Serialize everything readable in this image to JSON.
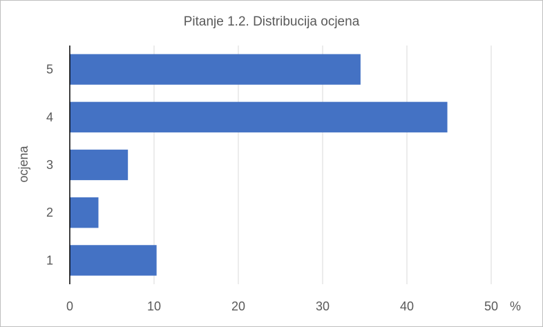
{
  "chart_data": {
    "type": "bar",
    "orientation": "horizontal",
    "title": "Pitanje 1.2. Distribucija ocjena",
    "categories": [
      "5",
      "4",
      "3",
      "2",
      "1"
    ],
    "values": [
      34.5,
      44.8,
      6.9,
      3.4,
      10.3
    ],
    "ylabel": "ocjena",
    "xlabel": "",
    "x_unit": "%",
    "xlim": [
      0,
      50
    ],
    "x_ticks": [
      "0",
      "10",
      "20",
      "30",
      "40",
      "50"
    ],
    "grid": "vertical",
    "legend": "none",
    "bar_color": "#4472c4"
  }
}
